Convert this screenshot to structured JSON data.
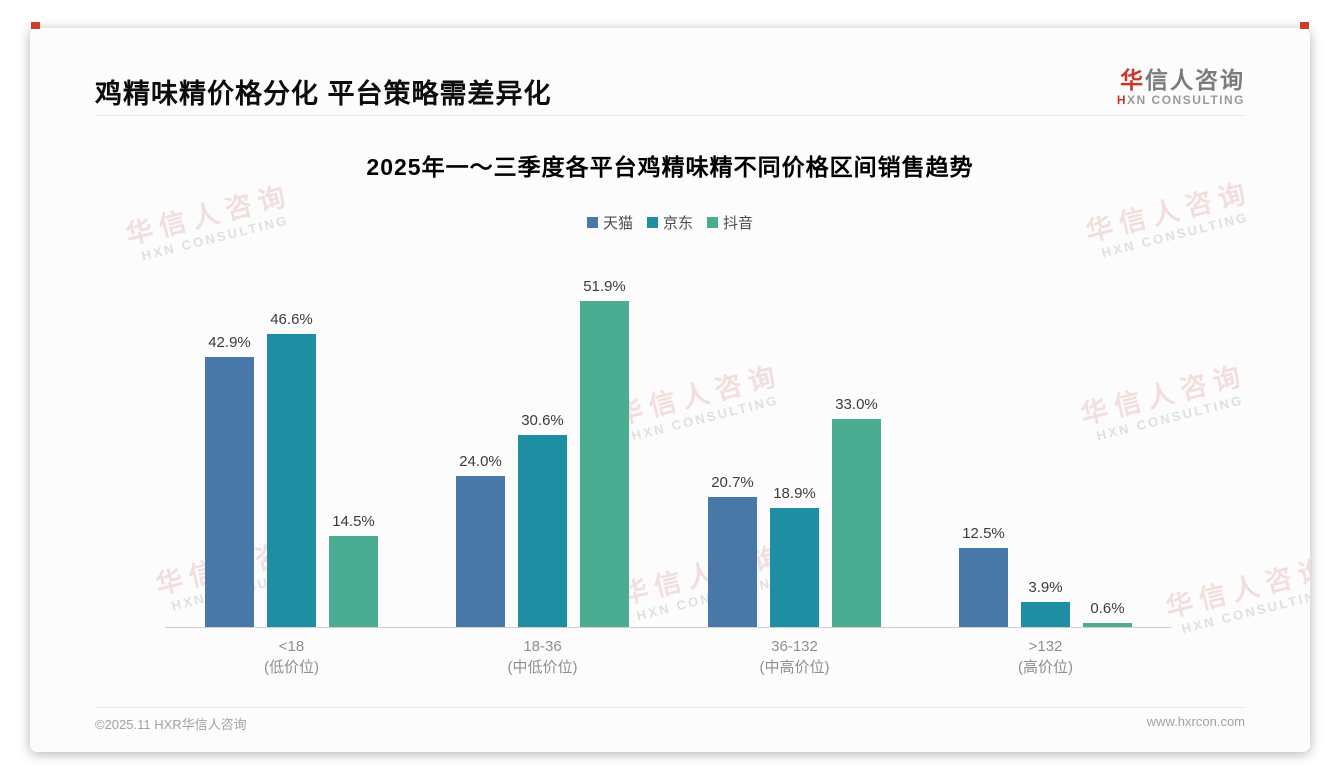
{
  "page": {
    "header": {
      "title": "鸡精味精价格分化 平台策略需差异化"
    },
    "logo": {
      "cn_first": "华",
      "cn_rest": "信人咨询",
      "en_first": "H",
      "en_rest": "XN CONSULTING"
    },
    "footer": {
      "copyright": "©2025.11 HXR华信人咨询",
      "website": "www.hxrcon.com"
    },
    "watermark": {
      "cn": "华信人咨询",
      "en": "HXN CONSULTING"
    }
  },
  "chart_data": {
    "type": "bar",
    "title": "2025年一～三季度各平台鸡精味精不同价格区间销售趋势",
    "categories": [
      "<18",
      "18-36",
      "36-132",
      ">132"
    ],
    "category_sublabels": [
      "(低价位)",
      "(中低价位)",
      "(中高价位)",
      "(高价位)"
    ],
    "series": [
      {
        "name": "天猫",
        "color": "#4878a8",
        "values": [
          42.9,
          24.0,
          20.7,
          12.5
        ]
      },
      {
        "name": "京东",
        "color": "#1e8fa3",
        "values": [
          46.6,
          30.6,
          18.9,
          3.9
        ]
      },
      {
        "name": "抖音",
        "color": "#4aac91",
        "values": [
          14.5,
          51.9,
          33.0,
          0.6
        ]
      }
    ],
    "value_suffix": "%",
    "ylim": [
      0,
      62
    ],
    "legend_position": "top",
    "grid": false,
    "xlabel": "",
    "ylabel": ""
  }
}
